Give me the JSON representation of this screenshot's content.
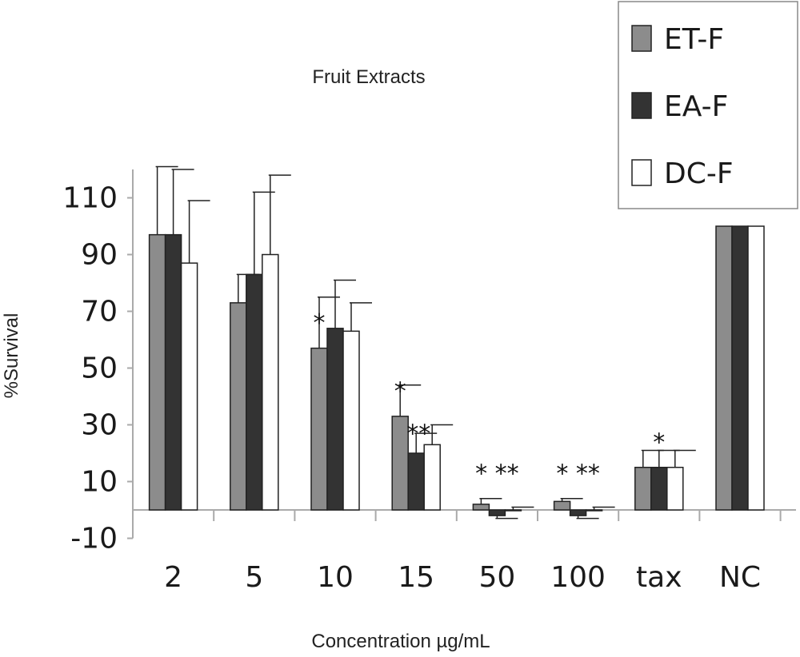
{
  "chart_data": {
    "type": "bar",
    "title": "Fruit Extracts",
    "xlabel": "Concentration µg/mL",
    "ylabel": "%Survival",
    "categories": [
      "2",
      "5",
      "10",
      "15",
      "50",
      "100",
      "tax",
      "NC"
    ],
    "yticks": [
      "110",
      "90",
      "70",
      "50",
      "30",
      "10",
      "-10"
    ],
    "ylim": [
      -10,
      120
    ],
    "grid": false,
    "legend_position": "top-right",
    "series": [
      {
        "name": "ET-F",
        "color": "#8c8c8c",
        "values": [
          97,
          73,
          57,
          33,
          2,
          3,
          15,
          100
        ],
        "errors": [
          24,
          10,
          18,
          11,
          2,
          1,
          6,
          0
        ]
      },
      {
        "name": "EA-F",
        "color": "#333333",
        "values": [
          97,
          83,
          64,
          20,
          -2,
          -2,
          15,
          100
        ],
        "errors": [
          23,
          29,
          17,
          7,
          1,
          1,
          6,
          0
        ]
      },
      {
        "name": "DC-F",
        "color": "#ffffff",
        "values": [
          87,
          90,
          63,
          23,
          0,
          0,
          15,
          100
        ],
        "errors": [
          22,
          28,
          10,
          7,
          1,
          1,
          6,
          0
        ]
      }
    ],
    "annotations": [
      {
        "category": "10",
        "text": "*"
      },
      {
        "category": "15",
        "text": "*"
      },
      {
        "category": "15",
        "text": "**"
      },
      {
        "category": "50",
        "text": "* **"
      },
      {
        "category": "100",
        "text": "* **"
      },
      {
        "category": "tax",
        "text": "*"
      }
    ]
  }
}
